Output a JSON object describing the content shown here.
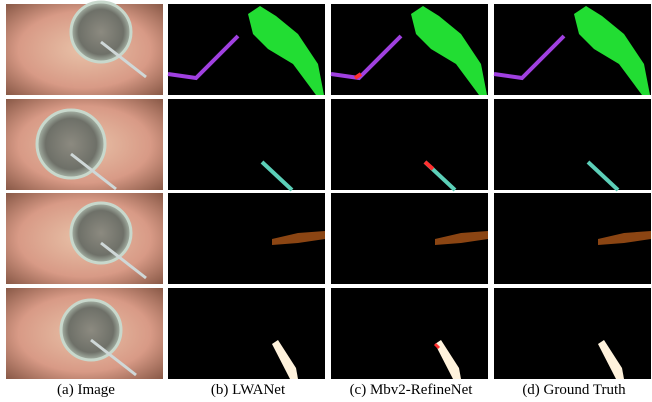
{
  "captions": [
    "(a) Image",
    "(b) LWANet",
    "(c) Mbv2-RefineNet",
    "(d) Ground Truth"
  ]
}
